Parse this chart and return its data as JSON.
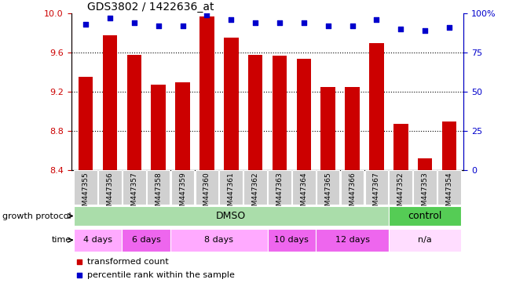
{
  "title": "GDS3802 / 1422636_at",
  "samples": [
    "GSM447355",
    "GSM447356",
    "GSM447357",
    "GSM447358",
    "GSM447359",
    "GSM447360",
    "GSM447361",
    "GSM447362",
    "GSM447363",
    "GSM447364",
    "GSM447365",
    "GSM447366",
    "GSM447367",
    "GSM447352",
    "GSM447353",
    "GSM447354"
  ],
  "transformed_count": [
    9.35,
    9.78,
    9.58,
    9.27,
    9.3,
    9.97,
    9.75,
    9.58,
    9.57,
    9.54,
    9.25,
    9.25,
    9.7,
    8.87,
    8.52,
    8.9
  ],
  "percentile_rank": [
    93,
    97,
    94,
    92,
    92,
    99,
    96,
    94,
    94,
    94,
    92,
    92,
    96,
    90,
    89,
    91
  ],
  "bar_color": "#cc0000",
  "dot_color": "#0000cc",
  "ylim_left": [
    8.4,
    10.0
  ],
  "ylim_right": [
    0,
    100
  ],
  "yticks_left": [
    8.4,
    8.8,
    9.2,
    9.6,
    10.0
  ],
  "yticks_right": [
    0,
    25,
    50,
    75,
    100
  ],
  "dotted_lines": [
    8.8,
    9.2,
    9.6
  ],
  "dmso_range": [
    0,
    12
  ],
  "ctrl_range": [
    13,
    15
  ],
  "time_groups": [
    {
      "label": "4 days",
      "start": 0,
      "end": 1,
      "color": "#ffaaff"
    },
    {
      "label": "6 days",
      "start": 2,
      "end": 3,
      "color": "#dd44dd"
    },
    {
      "label": "8 days",
      "start": 4,
      "end": 7,
      "color": "#ffaaff"
    },
    {
      "label": "10 days",
      "start": 8,
      "end": 9,
      "color": "#dd44dd"
    },
    {
      "label": "12 days",
      "start": 10,
      "end": 12,
      "color": "#dd44dd"
    },
    {
      "label": "n/a",
      "start": 13,
      "end": 15,
      "color": "#ffddff"
    }
  ],
  "growth_protocol_label": "growth protocol",
  "time_label": "time",
  "legend_items": [
    {
      "label": "transformed count",
      "color": "#cc0000"
    },
    {
      "label": "percentile rank within the sample",
      "color": "#0000cc"
    }
  ],
  "background_color": "#ffffff",
  "tick_label_bg": "#d0d0d0",
  "dmso_color": "#aaddaa",
  "ctrl_color": "#55cc55"
}
